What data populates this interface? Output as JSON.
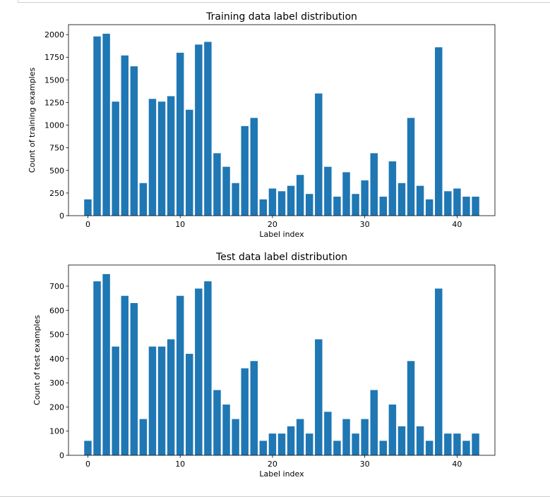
{
  "chart_data": [
    {
      "type": "bar",
      "title": "Training data label distribution",
      "xlabel": "Label index",
      "ylabel": "Count of training examples",
      "color": "#1f77b4",
      "xlim": [
        -2.1,
        44.1
      ],
      "ylim": [
        0,
        2110
      ],
      "xticks": [
        0,
        10,
        20,
        30,
        40
      ],
      "yticks": [
        0,
        250,
        500,
        750,
        1000,
        1250,
        1500,
        1750,
        2000
      ],
      "x": [
        0,
        1,
        2,
        3,
        4,
        5,
        6,
        7,
        8,
        9,
        10,
        11,
        12,
        13,
        14,
        15,
        16,
        17,
        18,
        19,
        20,
        21,
        22,
        23,
        24,
        25,
        26,
        27,
        28,
        29,
        30,
        31,
        32,
        33,
        34,
        35,
        36,
        37,
        38,
        39,
        40,
        41,
        42
      ],
      "values": [
        180,
        1980,
        2010,
        1260,
        1770,
        1650,
        360,
        1290,
        1260,
        1320,
        1800,
        1170,
        1890,
        1920,
        690,
        540,
        360,
        990,
        1080,
        180,
        300,
        270,
        330,
        450,
        240,
        1350,
        540,
        210,
        480,
        240,
        390,
        690,
        210,
        600,
        360,
        1080,
        330,
        180,
        1860,
        270,
        300,
        210,
        210
      ]
    },
    {
      "type": "bar",
      "title": "Test data label distribution",
      "xlabel": "Label index",
      "ylabel": "Count of test examples",
      "color": "#1f77b4",
      "xlim": [
        -2.1,
        44.1
      ],
      "ylim": [
        0,
        787.5
      ],
      "xticks": [
        0,
        10,
        20,
        30,
        40
      ],
      "yticks": [
        0,
        100,
        200,
        300,
        400,
        500,
        600,
        700
      ],
      "x": [
        0,
        1,
        2,
        3,
        4,
        5,
        6,
        7,
        8,
        9,
        10,
        11,
        12,
        13,
        14,
        15,
        16,
        17,
        18,
        19,
        20,
        21,
        22,
        23,
        24,
        25,
        26,
        27,
        28,
        29,
        30,
        31,
        32,
        33,
        34,
        35,
        36,
        37,
        38,
        39,
        40,
        41,
        42
      ],
      "values": [
        60,
        720,
        750,
        450,
        660,
        630,
        150,
        450,
        450,
        480,
        660,
        420,
        690,
        720,
        270,
        210,
        150,
        360,
        390,
        60,
        90,
        90,
        120,
        150,
        90,
        480,
        180,
        60,
        150,
        90,
        150,
        270,
        60,
        210,
        120,
        390,
        120,
        60,
        690,
        90,
        90,
        60,
        90
      ]
    }
  ]
}
